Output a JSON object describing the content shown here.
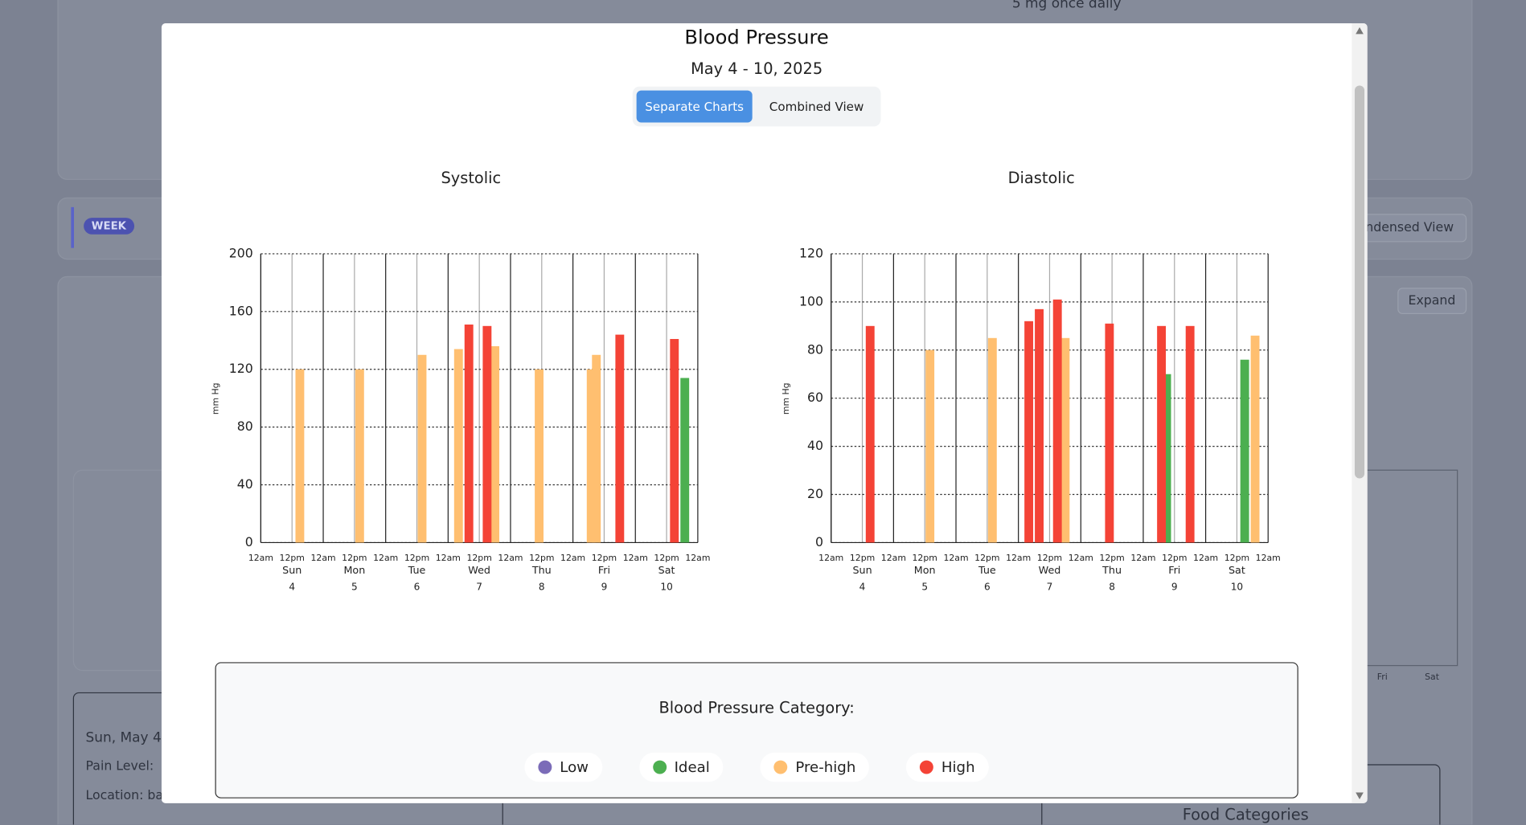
{
  "background": {
    "medication": "5 mg once daily",
    "period": "WEEK",
    "view_toggle": "ndensed View",
    "expand": "Expand",
    "entry_date": "Sun, May 4",
    "pain_label": "Pain Level:",
    "location_label": "Location: bac",
    "food_title": "Food Categories",
    "fri": "Fri",
    "sat": "Sat"
  },
  "modal": {
    "title": "Blood Pressure",
    "date_range": "May 4 - 10, 2025",
    "tabs": [
      "Separate Charts",
      "Combined View"
    ],
    "legend_title": "Blood Pressure Category:"
  },
  "chart_data": [
    {
      "type": "bar",
      "title": "Systolic",
      "ylabel": "mm Hg",
      "xlim": [
        0,
        168
      ],
      "xticks": [
        {
          "value": 0,
          "label": "12am"
        },
        {
          "value": 12,
          "label": "12pm"
        },
        {
          "value": 24,
          "label": "12am"
        },
        {
          "value": 36,
          "label": "12pm"
        },
        {
          "value": 48,
          "label": "12am"
        },
        {
          "value": 60,
          "label": "12pm"
        },
        {
          "value": 72,
          "label": "12am"
        },
        {
          "value": 84,
          "label": "12pm"
        },
        {
          "value": 96,
          "label": "12am"
        },
        {
          "value": 108,
          "label": "12pm"
        },
        {
          "value": 120,
          "label": "12am"
        },
        {
          "value": 132,
          "label": "12pm"
        },
        {
          "value": 144,
          "label": "12am"
        },
        {
          "value": 156,
          "label": "12pm"
        },
        {
          "value": 168,
          "label": "12am"
        }
      ],
      "day_labels": [
        {
          "value": 12,
          "label": "Sun"
        },
        {
          "value": 36,
          "label": "Mon"
        },
        {
          "value": 60,
          "label": "Tue"
        },
        {
          "value": 84,
          "label": "Wed"
        },
        {
          "value": 108,
          "label": "Thu"
        },
        {
          "value": 132,
          "label": "Fri"
        },
        {
          "value": 156,
          "label": "Sat"
        }
      ],
      "day_numbers": [
        {
          "value": 12,
          "label": "4"
        },
        {
          "value": 36,
          "label": "5"
        },
        {
          "value": 60,
          "label": "6"
        },
        {
          "value": 84,
          "label": "7"
        },
        {
          "value": 108,
          "label": "8"
        },
        {
          "value": 132,
          "label": "9"
        },
        {
          "value": 156,
          "label": "10"
        }
      ],
      "ylim": [
        0,
        200
      ],
      "yticks": [
        0,
        40,
        80,
        120,
        160,
        200
      ],
      "grid": true,
      "series": [
        {
          "name": "Low",
          "color": "#7b6cb8",
          "x": [],
          "values": []
        },
        {
          "name": "Ideal",
          "color": "#4caf50",
          "x": [
            163
          ],
          "values": [
            114
          ]
        },
        {
          "name": "Pre-high",
          "color": "#ffbf70",
          "x": [
            15,
            38,
            62,
            76,
            90,
            107,
            127,
            129
          ],
          "values": [
            120,
            120,
            130,
            134,
            136,
            120,
            120,
            130
          ]
        },
        {
          "name": "High",
          "color": "#f44336",
          "x": [
            80,
            87,
            138,
            159
          ],
          "values": [
            151,
            150,
            144,
            141
          ]
        }
      ]
    },
    {
      "type": "bar",
      "title": "Diastolic",
      "ylabel": "mm Hg",
      "xlim": [
        0,
        168
      ],
      "xticks": [
        {
          "value": 0,
          "label": "12am"
        },
        {
          "value": 12,
          "label": "12pm"
        },
        {
          "value": 24,
          "label": "12am"
        },
        {
          "value": 36,
          "label": "12pm"
        },
        {
          "value": 48,
          "label": "12am"
        },
        {
          "value": 60,
          "label": "12pm"
        },
        {
          "value": 72,
          "label": "12am"
        },
        {
          "value": 84,
          "label": "12pm"
        },
        {
          "value": 96,
          "label": "12am"
        },
        {
          "value": 108,
          "label": "12pm"
        },
        {
          "value": 120,
          "label": "12am"
        },
        {
          "value": 132,
          "label": "12pm"
        },
        {
          "value": 144,
          "label": "12am"
        },
        {
          "value": 156,
          "label": "12pm"
        },
        {
          "value": 168,
          "label": "12am"
        }
      ],
      "day_labels": [
        {
          "value": 12,
          "label": "Sun"
        },
        {
          "value": 36,
          "label": "Mon"
        },
        {
          "value": 60,
          "label": "Tue"
        },
        {
          "value": 84,
          "label": "Wed"
        },
        {
          "value": 108,
          "label": "Thu"
        },
        {
          "value": 132,
          "label": "Fri"
        },
        {
          "value": 156,
          "label": "Sat"
        }
      ],
      "day_numbers": [
        {
          "value": 12,
          "label": "4"
        },
        {
          "value": 36,
          "label": "5"
        },
        {
          "value": 60,
          "label": "6"
        },
        {
          "value": 84,
          "label": "7"
        },
        {
          "value": 108,
          "label": "8"
        },
        {
          "value": 132,
          "label": "9"
        },
        {
          "value": 156,
          "label": "10"
        }
      ],
      "ylim": [
        0,
        120
      ],
      "yticks": [
        0,
        20,
        40,
        60,
        80,
        100,
        120
      ],
      "grid": true,
      "series": [
        {
          "name": "Low",
          "color": "#7b6cb8",
          "x": [],
          "values": []
        },
        {
          "name": "Ideal",
          "color": "#4caf50",
          "x": [
            129,
            159
          ],
          "values": [
            70,
            76
          ]
        },
        {
          "name": "Pre-high",
          "color": "#ffbf70",
          "x": [
            38,
            62,
            90,
            163
          ],
          "values": [
            80,
            85,
            85,
            86
          ]
        },
        {
          "name": "High",
          "color": "#f44336",
          "x": [
            15,
            76,
            80,
            87,
            107,
            127,
            138
          ],
          "values": [
            90,
            92,
            97,
            101,
            91,
            90,
            90
          ]
        }
      ]
    }
  ]
}
